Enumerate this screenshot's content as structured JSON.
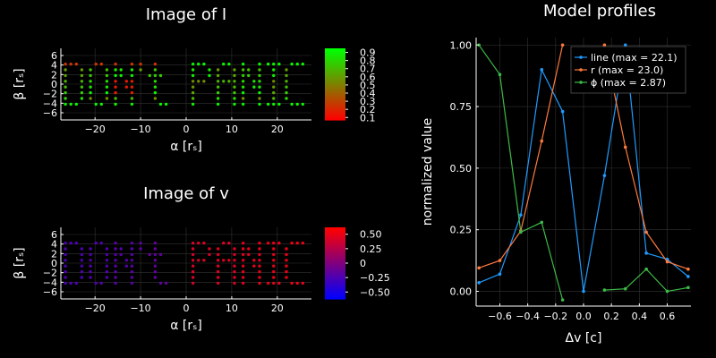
{
  "colors": {
    "background": "#000000",
    "axis": "#ffffff",
    "grid": "#333333",
    "line_series": "#1f9bff",
    "r_series": "#ff7a3d",
    "phi_series": "#3dbb47",
    "I_low": "#ff0000",
    "I_high": "#00ff00",
    "v_low": "#0000ff",
    "v_high": "#ff0000"
  },
  "chart_data": [
    {
      "type": "heatmap",
      "title": "Image of I",
      "xlabel": "α [rₛ]",
      "ylabel": "β [rₛ]",
      "xlim": [
        -27.5,
        27.5
      ],
      "ylim": [
        -7.5,
        7.5
      ],
      "xticks": [
        "−20",
        "−10",
        "0",
        "10",
        "20"
      ],
      "yticks": [
        "6",
        "4",
        "2",
        "0",
        "−2",
        "−4",
        "−6"
      ],
      "colorbar_ticks": [
        "0.9",
        "0.8",
        "0.7",
        "0.6",
        "0.5",
        "0.4",
        "0.3",
        "0.2",
        "0.1"
      ],
      "colorbar_range": [
        0.07,
        0.95
      ],
      "text_rendered": "DON'tPANIC",
      "value_range": [
        0.1,
        0.9
      ]
    },
    {
      "type": "heatmap",
      "title": "Image of v",
      "xlabel": "α [rₛ]",
      "ylabel": "β [rₛ]",
      "xlim": [
        -27.5,
        27.5
      ],
      "ylim": [
        -7.5,
        7.5
      ],
      "xticks": [
        "−20",
        "−10",
        "0",
        "10",
        "20"
      ],
      "yticks": [
        "6",
        "4",
        "2",
        "0",
        "−2",
        "−4",
        "−6"
      ],
      "colorbar_ticks": [
        "0.50",
        "0.25",
        "0",
        "−0.25",
        "−0.50"
      ],
      "colorbar_range": [
        -0.62,
        0.62
      ],
      "text_rendered": "DON'tPANIC",
      "value_range": [
        -0.3,
        0.3
      ]
    },
    {
      "type": "line",
      "title": "Model profiles",
      "xlabel": "Δv [c]",
      "ylabel": "normalized value",
      "xlim": [
        -0.77,
        0.77
      ],
      "ylim": [
        -0.06,
        1.03
      ],
      "xticks": [
        "−0.6",
        "−0.4",
        "−0.2",
        "0.0",
        "0.2",
        "0.4",
        "0.6"
      ],
      "yticks": [
        "1.00",
        "0.75",
        "0.50",
        "0.25",
        "0.00"
      ],
      "legend_position": "top-right",
      "series": [
        {
          "name": "line (max = 22.1)",
          "x": [
            -0.75,
            -0.6,
            -0.45,
            -0.3,
            -0.15,
            0.0,
            0.15,
            0.3,
            0.45,
            0.6,
            0.75
          ],
          "y": [
            0.035,
            0.07,
            0.31,
            0.9,
            0.73,
            0.0,
            0.47,
            1.0,
            0.155,
            0.13,
            0.06
          ]
        },
        {
          "name": "r (max = 23.0)",
          "x": [
            -0.75,
            -0.6,
            -0.45,
            -0.3,
            -0.15,
            null,
            0.15,
            0.3,
            0.45,
            0.6,
            0.75
          ],
          "y": [
            0.095,
            0.125,
            0.245,
            0.61,
            1.0,
            null,
            1.0,
            0.585,
            0.24,
            0.12,
            0.09
          ]
        },
        {
          "name": "ϕ (max = 2.87)",
          "x": [
            -0.75,
            -0.6,
            -0.45,
            -0.3,
            -0.15,
            null,
            0.15,
            0.3,
            0.45,
            0.6,
            0.75
          ],
          "y": [
            1.0,
            0.88,
            0.24,
            0.28,
            -0.035,
            null,
            0.005,
            0.01,
            0.09,
            0.0,
            0.015
          ]
        }
      ]
    }
  ]
}
